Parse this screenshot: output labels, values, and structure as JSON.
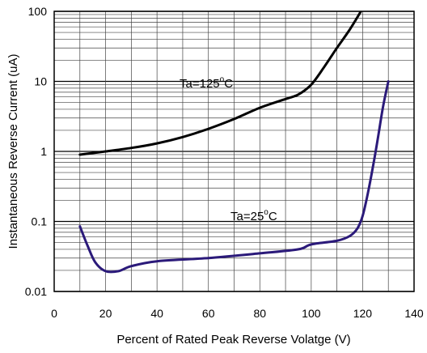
{
  "chart_data": {
    "type": "line",
    "xlabel": "Percent of Rated Peak Reverse Volatge (V)",
    "ylabel": "Instantaneous Reverse Current (uA)",
    "xlim": [
      0,
      140
    ],
    "ylim": [
      0.01,
      100
    ],
    "yscale": "log",
    "grid": true,
    "x_ticks": [
      "0",
      "20",
      "40",
      "60",
      "80",
      "100",
      "120",
      "140"
    ],
    "y_ticks": [
      "0.01",
      "0.1",
      "1",
      "10",
      "100"
    ],
    "series": [
      {
        "name": "Ta=125°C",
        "label_main": "Ta=125",
        "label_sup": "o",
        "label_unit": "C",
        "color": "#000000",
        "x": [
          10,
          20,
          30,
          40,
          50,
          60,
          70,
          80,
          90,
          95,
          100,
          105,
          110,
          115,
          120
        ],
        "y": [
          0.9,
          1.0,
          1.12,
          1.3,
          1.6,
          2.1,
          2.9,
          4.2,
          5.6,
          6.5,
          9.0,
          16,
          30,
          55,
          110
        ]
      },
      {
        "name": "Ta=25°C",
        "label_main": "Ta=25",
        "label_sup": "o",
        "label_unit": "C",
        "color": "#2b1a7a",
        "x": [
          10,
          13,
          16,
          20,
          25,
          30,
          40,
          60,
          80,
          95,
          100,
          110,
          115,
          118,
          120,
          122,
          124,
          126,
          128,
          130
        ],
        "y": [
          0.085,
          0.045,
          0.026,
          0.0195,
          0.0195,
          0.023,
          0.027,
          0.03,
          0.035,
          0.04,
          0.047,
          0.053,
          0.062,
          0.08,
          0.12,
          0.25,
          0.6,
          1.6,
          4.5,
          10
        ]
      }
    ]
  }
}
